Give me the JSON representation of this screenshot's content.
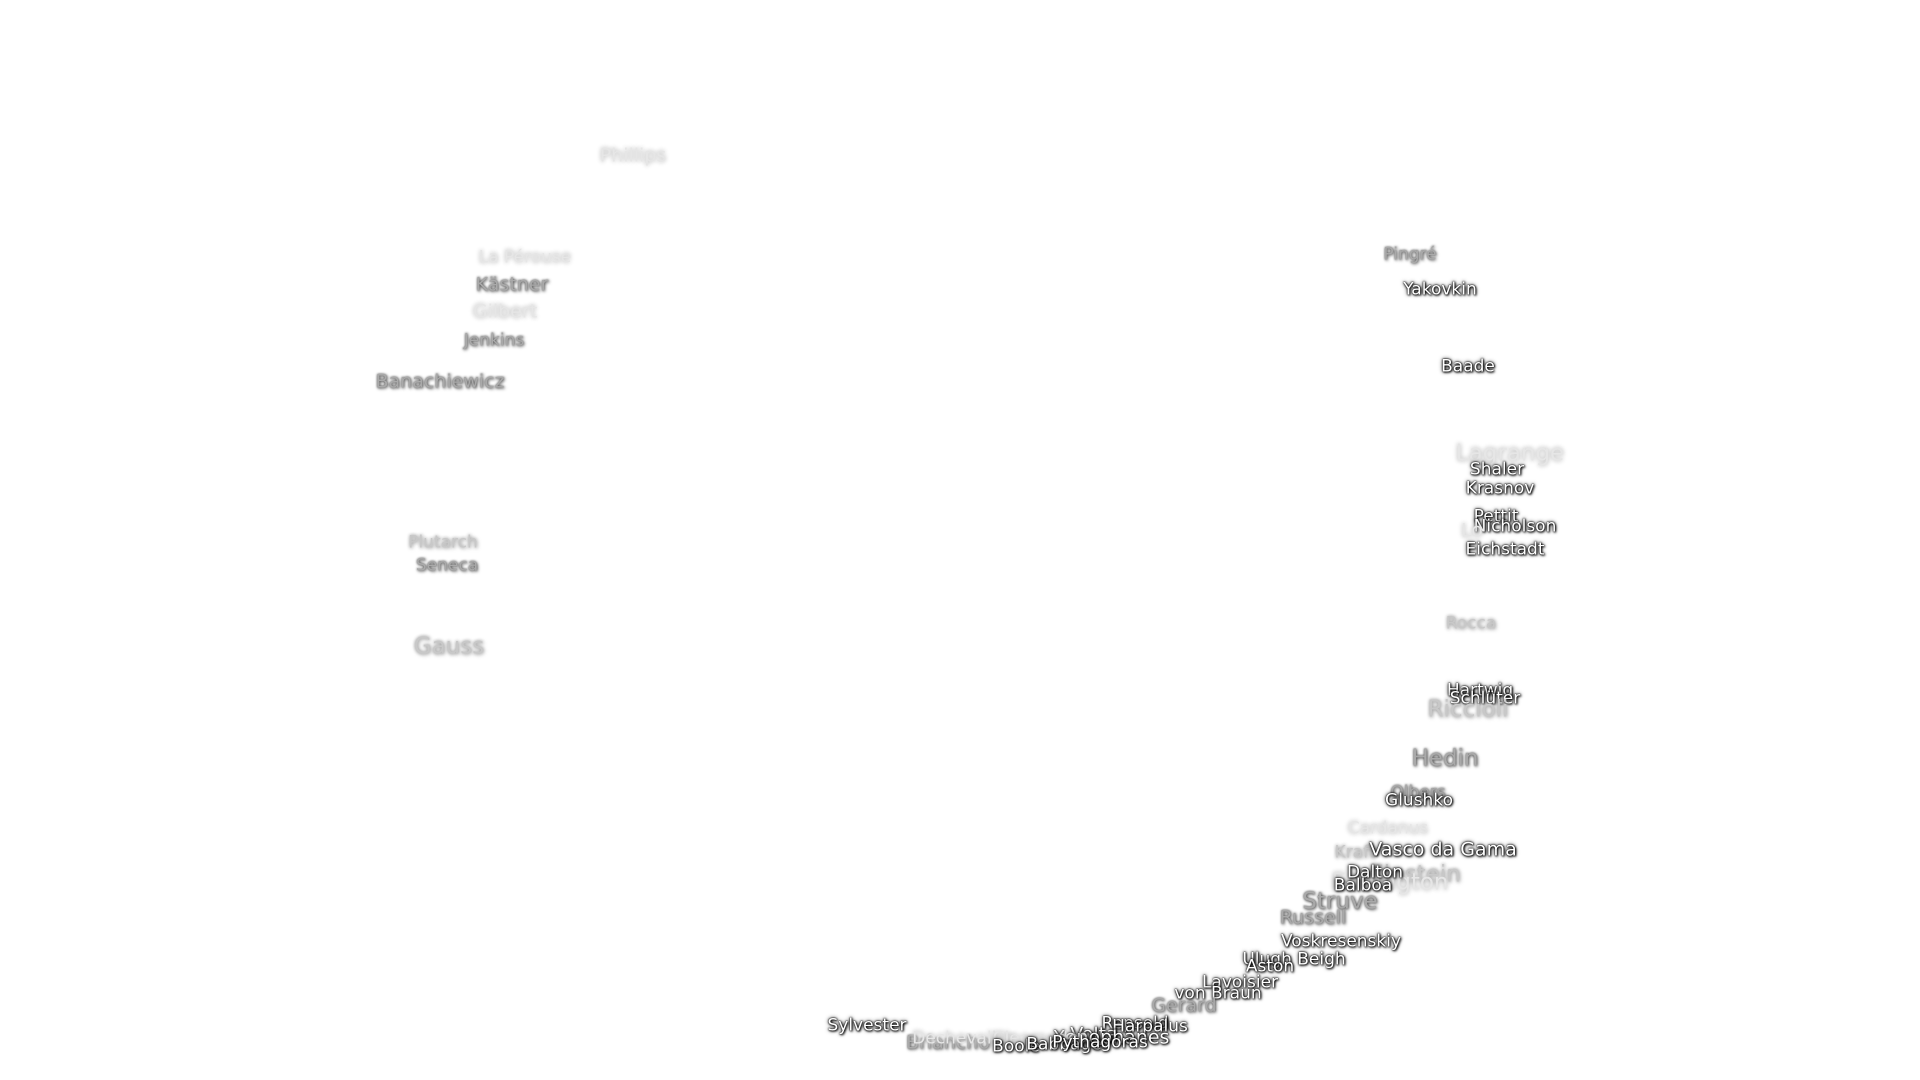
{
  "labels": [
    {
      "text": "Phillips",
      "tone": "faint",
      "size": 1
    },
    {
      "text": "La Pérouse",
      "tone": "faint",
      "size": 0
    },
    {
      "text": "Kästner",
      "tone": "mid",
      "size": 1
    },
    {
      "text": "Gilbert",
      "tone": "faint",
      "size": 1
    },
    {
      "text": "Jenkins",
      "tone": "mid",
      "size": 0
    },
    {
      "text": "Banachiewicz",
      "tone": "mid",
      "size": 1
    },
    {
      "text": "Plutarch",
      "tone": "light",
      "size": 0
    },
    {
      "text": "Seneca",
      "tone": "mid",
      "size": 0
    },
    {
      "text": "Gauss",
      "tone": "light",
      "size": 2
    },
    {
      "text": "Pingré",
      "tone": "mid",
      "size": 0
    },
    {
      "text": "Yakovkin",
      "tone": "dark",
      "size": 0
    },
    {
      "text": "Baade",
      "tone": "dark",
      "size": 0
    },
    {
      "text": "Lagrange",
      "tone": "faint",
      "size": 2
    },
    {
      "text": "Shaler",
      "tone": "dark",
      "size": 0
    },
    {
      "text": "Krasnov",
      "tone": "dark",
      "size": 0
    },
    {
      "text": "Pettit",
      "tone": "dark",
      "size": 0
    },
    {
      "text": "Nicholson",
      "tone": "dark",
      "size": 0
    },
    {
      "text": "Lo",
      "tone": "faint",
      "size": 1
    },
    {
      "text": "Eichstadt",
      "tone": "dark",
      "size": 0
    },
    {
      "text": "Rocca",
      "tone": "light",
      "size": 0
    },
    {
      "text": "Hartwig",
      "tone": "dark",
      "size": 0
    },
    {
      "text": "Schlüter",
      "tone": "dark",
      "size": 0
    },
    {
      "text": "Riccioli",
      "tone": "light",
      "size": 2
    },
    {
      "text": "Hedin",
      "tone": "mid",
      "size": 2
    },
    {
      "text": "Olbers",
      "tone": "mid",
      "size": 0
    },
    {
      "text": "Glushko",
      "tone": "dark",
      "size": 0
    },
    {
      "text": "Cardanus",
      "tone": "faint",
      "size": 0
    },
    {
      "text": "Kraft",
      "tone": "light",
      "size": 0
    },
    {
      "text": "Vasco da Gama",
      "tone": "dark",
      "size": 1
    },
    {
      "text": "Einstein",
      "tone": "light",
      "size": 2
    },
    {
      "text": "Eddington",
      "tone": "faint",
      "size": 2
    },
    {
      "text": "Dalton",
      "tone": "dark",
      "size": 0
    },
    {
      "text": "Balboa",
      "tone": "dark",
      "size": 0
    },
    {
      "text": "Struve",
      "tone": "mid",
      "size": 2
    },
    {
      "text": "Russell",
      "tone": "mid",
      "size": 1
    },
    {
      "text": "Voskresenskiy",
      "tone": "dark",
      "size": 0
    },
    {
      "text": "Ulugh Beigh",
      "tone": "dark",
      "size": 0
    },
    {
      "text": "Aston",
      "tone": "dark",
      "size": 0
    },
    {
      "text": "Lavoisier",
      "tone": "dark",
      "size": 0
    },
    {
      "text": "von Braun",
      "tone": "dark",
      "size": 0
    },
    {
      "text": "Gerard",
      "tone": "mid",
      "size": 1
    },
    {
      "text": "Repsold",
      "tone": "dark",
      "size": 0
    },
    {
      "text": "Harpalus",
      "tone": "dark",
      "size": 0
    },
    {
      "text": "Volta",
      "tone": "dark",
      "size": 1
    },
    {
      "text": "Xenophanes",
      "tone": "dark",
      "size": 1
    },
    {
      "text": "Sylvester",
      "tone": "dark",
      "size": 0
    },
    {
      "text": "Briancho",
      "tone": "mid",
      "size": 1
    },
    {
      "text": "Dechevalier",
      "tone": "faint",
      "size": 0
    },
    {
      "text": "Cleomedes",
      "tone": "faint",
      "size": 0
    },
    {
      "text": "Boole",
      "tone": "dark",
      "size": 0
    },
    {
      "text": "Babbage",
      "tone": "dark",
      "size": 0
    },
    {
      "text": "Pythagoras",
      "tone": "dark",
      "size": 0
    }
  ]
}
